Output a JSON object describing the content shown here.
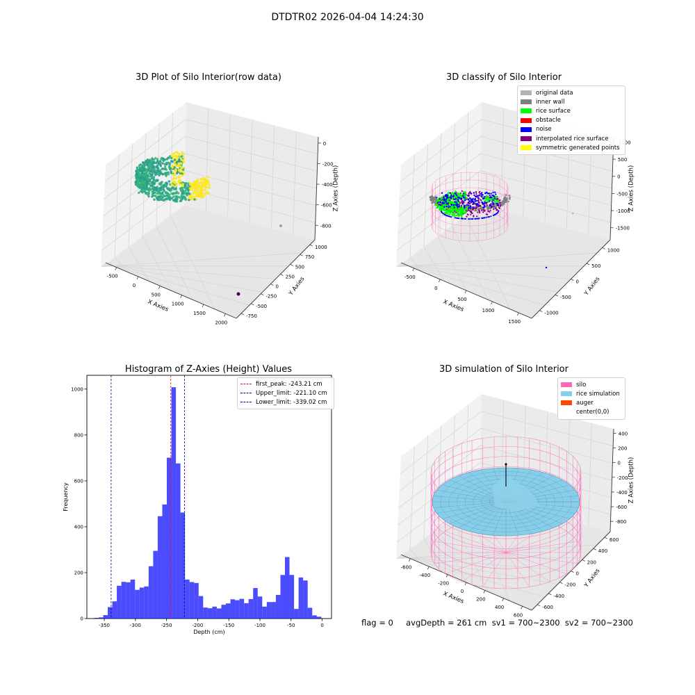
{
  "suptitle": "DTDTR02 2026-04-04 14:24:30",
  "status_text": "flag = 0     avgDepth = 261 cm  sv1 = 700~2300  sv2 = 700~2300",
  "chart_data": [
    {
      "type": "scatter",
      "title": "3D Plot of Silo Interior(row data)",
      "xlabel": "X Axies",
      "ylabel": "Y Axies",
      "zlabel": "Z Axies (Depth)",
      "x_ticks": [
        "-500",
        "0",
        "500",
        "1000",
        "1500",
        "2000"
      ],
      "y_ticks": [
        "-750",
        "-500",
        "-250",
        "0",
        "250",
        "500",
        "750",
        "1000"
      ],
      "z_ticks": [
        "0",
        "-200",
        "-400",
        "-600",
        "-800"
      ],
      "grid": true,
      "colormap": [
        "#440154",
        "#2a9d8f",
        "#35b779",
        "#fde725"
      ]
    },
    {
      "type": "scatter",
      "title": "3D classify of Silo Interior",
      "xlabel": "X Axies",
      "ylabel": "Y Axies",
      "zlabel": "Z Axies (Depth)",
      "x_ticks": [
        "-500",
        "0",
        "500",
        "1000",
        "1500"
      ],
      "y_ticks": [
        "-1000",
        "-500",
        "0",
        "500",
        "1000"
      ],
      "z_ticks": [
        "1000",
        "500",
        "0",
        "-500",
        "-1000",
        "-1500"
      ],
      "grid": true,
      "legend_position": "top-right",
      "legend": [
        {
          "label": "original data",
          "color": "#b3b3b3"
        },
        {
          "label": "inner wall",
          "color": "#808080"
        },
        {
          "label": "rice surface",
          "color": "#00ff00"
        },
        {
          "label": "obstacle",
          "color": "#ff0000"
        },
        {
          "label": "noise",
          "color": "#0000ff"
        },
        {
          "label": "interpolated rice surface",
          "color": "#800080"
        },
        {
          "label": "symmetric generated points",
          "color": "#ffff00"
        }
      ]
    },
    {
      "type": "bar",
      "title": "Histogram of Z-Axies (Height) Values",
      "xlabel": "Depth (cm)",
      "ylabel": "Frequency",
      "xlim": [
        -378,
        15
      ],
      "ylim": [
        0,
        1060
      ],
      "x_ticks": [
        -350,
        -300,
        -250,
        -200,
        -150,
        -100,
        -50,
        0
      ],
      "y_ticks": [
        0,
        200,
        400,
        600,
        800,
        1000
      ],
      "bin_width": 7.3,
      "bin_starts": [
        -366.4,
        -359.1,
        -351.8,
        -344.5,
        -337.2,
        -329.9,
        -322.6,
        -315.3,
        -308.0,
        -300.7,
        -293.4,
        -286.1,
        -278.8,
        -271.5,
        -264.2,
        -256.9,
        -249.6,
        -242.3,
        -235.0,
        -227.7,
        -220.4,
        -213.1,
        -205.8,
        -198.5,
        -191.2,
        -183.9,
        -176.6,
        -169.3,
        -162.0,
        -154.7,
        -147.4,
        -140.1,
        -132.8,
        -125.5,
        -118.2,
        -110.9,
        -103.6,
        -96.3,
        -89.0,
        -81.7,
        -74.4,
        -67.1,
        -59.8,
        -52.5,
        -45.2,
        -37.9,
        -30.6,
        -23.3,
        -16.0,
        -8.7
      ],
      "values": [
        3,
        5,
        15,
        50,
        75,
        143,
        160,
        158,
        170,
        125,
        135,
        140,
        228,
        295,
        446,
        497,
        701,
        1008,
        676,
        462,
        170,
        159,
        155,
        98,
        48,
        45,
        52,
        44,
        60,
        66,
        84,
        80,
        86,
        67,
        85,
        133,
        96,
        52,
        72,
        72,
        103,
        190,
        268,
        190,
        42,
        179,
        166,
        47,
        14,
        8
      ],
      "bar_color": "#0000ff",
      "vlines": [
        {
          "label": "first_peak: -243.21 cm",
          "x": -243.21,
          "color": "#ff0000"
        },
        {
          "label": "Upper_limit: -221.10 cm",
          "x": -221.1,
          "color": "#00008b"
        },
        {
          "label": "Lower_limit: -339.02 cm",
          "x": -339.02,
          "color": "#00008b"
        }
      ],
      "legend_position": "top-right",
      "grid": false
    },
    {
      "type": "scatter",
      "title": "3D simulation of Silo Interior",
      "xlabel": "X Axies",
      "ylabel": "Y Axies",
      "zlabel": "Z Axies (Depth)",
      "x_ticks": [
        "-600",
        "-400",
        "-200",
        "0",
        "200",
        "400",
        "600"
      ],
      "y_ticks": [
        "-600",
        "-400",
        "-200",
        "0",
        "200",
        "400",
        "600"
      ],
      "z_ticks": [
        "400",
        "200",
        "0",
        "-200",
        "-400",
        "-600",
        "-800"
      ],
      "grid": true,
      "legend_position": "top-right",
      "legend": [
        {
          "label": "silo",
          "color": "#ff69b4"
        },
        {
          "label": "rice simulation",
          "color": "#87ceeb"
        },
        {
          "label": "auger",
          "color": "#ff4500"
        },
        {
          "label": "center(0,0)",
          "color": "#ffffff"
        }
      ]
    }
  ]
}
